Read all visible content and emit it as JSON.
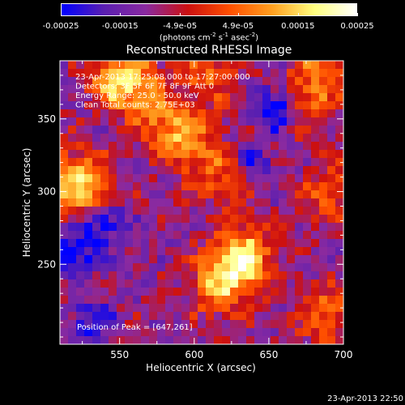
{
  "colorbar": {
    "tick_labels": [
      "-0.00025",
      "-0.00015",
      "-4.9e-05",
      "4.9e-05",
      "0.00015",
      "0.00025"
    ],
    "tick_values": [
      -0.00025,
      -0.00015,
      -4.9e-05,
      4.9e-05,
      0.00015,
      0.00025
    ],
    "range": [
      -0.00025,
      0.00025
    ],
    "unit_label": {
      "pre": "(photons cm",
      "e1": "-2",
      "mid1": " s",
      "e2": "-1",
      "mid2": " asec",
      "e3": "-2",
      "post": ")"
    },
    "stops": [
      "#0000ff",
      "#5a1fb0",
      "#8a2aa0",
      "#cc1010",
      "#ff5000",
      "#ffa020",
      "#ffff80",
      "#ffffff"
    ]
  },
  "chart_data": {
    "type": "heatmap",
    "title": "Reconstructed RHESSI Image",
    "xlabel": "Heliocentric X (arcsec)",
    "ylabel": "Heliocentric Y (arcsec)",
    "xlim": [
      510,
      700
    ],
    "ylim": [
      195,
      390
    ],
    "x_ticks": [
      550,
      600,
      650,
      700
    ],
    "y_ticks": [
      250,
      300,
      350
    ],
    "annotations": [
      "23-Apr-2013 17:25:08.000 to 17:27:00.000",
      "Detectors: 3F 5F 6F 7F 8F 9F Att 0",
      "Energy Range: 25.0 - 50.0 keV",
      "Clean    Total counts: 2.75E+03"
    ],
    "peak_label": "Position of Peak = [647,261]",
    "peak_position": [
      647,
      261
    ],
    "emission_sources": [
      {
        "x": 632,
        "y": 255,
        "strength": 1.0
      },
      {
        "x": 618,
        "y": 235,
        "strength": 0.7
      },
      {
        "x": 583,
        "y": 345,
        "strength": 0.6
      },
      {
        "x": 560,
        "y": 372,
        "strength": 0.55
      },
      {
        "x": 548,
        "y": 378,
        "strength": 0.6
      },
      {
        "x": 672,
        "y": 362,
        "strength": 0.5
      },
      {
        "x": 690,
        "y": 385,
        "strength": 0.55
      },
      {
        "x": 515,
        "y": 310,
        "strength": 0.6
      },
      {
        "x": 530,
        "y": 300,
        "strength": 0.55
      },
      {
        "x": 620,
        "y": 310,
        "strength": 0.45
      },
      {
        "x": 610,
        "y": 380,
        "strength": 0.45
      },
      {
        "x": 690,
        "y": 215,
        "strength": 0.55
      },
      {
        "x": 690,
        "y": 300,
        "strength": 0.45
      },
      {
        "x": 600,
        "y": 330,
        "strength": 0.4
      }
    ],
    "negative_regions": [
      {
        "x": 655,
        "y": 358,
        "strength": 0.9
      },
      {
        "x": 520,
        "y": 258,
        "strength": 0.7
      },
      {
        "x": 540,
        "y": 280,
        "strength": 0.6
      },
      {
        "x": 530,
        "y": 210,
        "strength": 0.5
      },
      {
        "x": 640,
        "y": 320,
        "strength": 0.4
      }
    ]
  },
  "footer": "23-Apr-2013 22:50"
}
